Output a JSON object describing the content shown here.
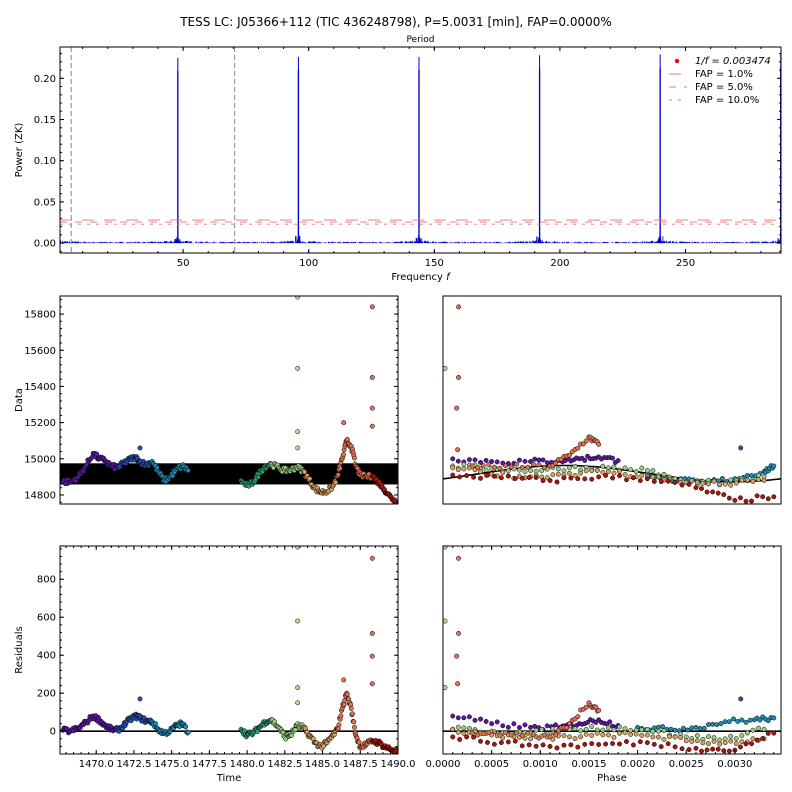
{
  "figure_title": "TESS LC: J05366+112 (TIC 436248798), P=5.0031 [min], FAP=0.0000%",
  "chart_data": [
    {
      "id": "periodogram",
      "type": "line",
      "title": "",
      "top_axis_label": "Period",
      "xlabel": "Frequency $f$",
      "ylabel": "Power (ZK)",
      "xlim": [
        1,
        288
      ],
      "ylim": [
        -0.012,
        0.238
      ],
      "xticks": [
        50,
        100,
        150,
        200,
        250
      ],
      "xtick_labels": [
        "50",
        "100",
        "150",
        "200",
        "250"
      ],
      "yticks": [
        0.0,
        0.05,
        0.1,
        0.15,
        0.2
      ],
      "ytick_labels": [
        "0.00",
        "0.05",
        "0.10",
        "0.15",
        "0.20"
      ],
      "peaks": [
        {
          "f": 47.9,
          "power": 0.225
        },
        {
          "f": 95.9,
          "power": 0.226
        },
        {
          "f": 143.9,
          "power": 0.226
        },
        {
          "f": 191.9,
          "power": 0.228
        },
        {
          "f": 239.9,
          "power": 0.229
        },
        {
          "f": 287.9,
          "power": 0.23
        }
      ],
      "baseline_noise": 0.004,
      "fap_levels": [
        {
          "name": "FAP = 1.0%",
          "power": 0.028,
          "dash": "long"
        },
        {
          "name": "FAP = 5.0%",
          "power": 0.0255,
          "dash": "medium"
        },
        {
          "name": "FAP = 10.0%",
          "power": 0.023,
          "dash": "short"
        }
      ],
      "vlines": [
        5.5,
        70.5
      ],
      "marker_legend": "$1/f = 0.003474$",
      "legend_position": "top-right",
      "colors": {
        "series": "#0000cc",
        "fap": "#e87070",
        "marker": "#ff0000",
        "vline": "#999999"
      }
    },
    {
      "id": "data-vs-time",
      "type": "scatter",
      "xlabel": "",
      "ylabel": "Data",
      "xlim": [
        1467.6,
        1490.0
      ],
      "ylim": [
        14750,
        15900
      ],
      "yticks": [
        14800,
        15000,
        15200,
        15400,
        15600,
        15800
      ],
      "ytick_labels": [
        "14800",
        "15000",
        "15200",
        "15400",
        "15600",
        "15800"
      ],
      "band": [
        14858,
        14975
      ],
      "series": [
        {
          "color": "#5a1aa0",
          "x": [
            1467.8,
            1468.3,
            1468.8,
            1469.3,
            1469.8,
            1470.2,
            1470.6,
            1471.0,
            1471.4
          ],
          "y": [
            14875,
            14872,
            14900,
            14960,
            15030,
            15000,
            14990,
            14960,
            14950
          ]
        },
        {
          "color": "#2a4fb0",
          "x": [
            1471.4,
            1471.8,
            1472.2,
            1472.6,
            1472.9,
            1473.3,
            1473.7
          ],
          "y": [
            14950,
            14975,
            14995,
            15008,
            14985,
            14968,
            14985
          ]
        },
        {
          "color": "#1f8bb0",
          "x": [
            1473.7,
            1474.1,
            1474.5,
            1474.9,
            1475.3,
            1475.7,
            1476.1
          ],
          "y": [
            14985,
            14930,
            14880,
            14900,
            14940,
            14960,
            14935
          ]
        },
        {
          "color": "#2aa070",
          "x": [
            1479.6,
            1480.0,
            1480.4,
            1480.8,
            1481.2,
            1481.6
          ],
          "y": [
            14880,
            14852,
            14870,
            14920,
            14960,
            14970
          ]
        },
        {
          "color": "#9acd80",
          "x": [
            1481.6,
            1482.1,
            1482.5,
            1482.9,
            1483.3,
            1483.7
          ],
          "y": [
            14970,
            14950,
            14935,
            14940,
            14955,
            14935
          ]
        },
        {
          "color": "#d9a060",
          "x": [
            1483.7,
            1484.1,
            1484.5,
            1484.9,
            1485.3,
            1485.7,
            1486.0
          ],
          "y": [
            14935,
            14885,
            14835,
            14815,
            14820,
            14850,
            14905
          ]
        },
        {
          "color": "#e07050",
          "x": [
            1486.0,
            1486.3,
            1486.6,
            1486.9,
            1487.2,
            1487.5,
            1487.9,
            1488.3
          ],
          "y": [
            14905,
            15000,
            15100,
            15070,
            14960,
            14910,
            14900,
            14905
          ]
        },
        {
          "color": "#aa1510",
          "x": [
            1488.3,
            1488.7,
            1489.1,
            1489.5,
            1489.9
          ],
          "y": [
            14905,
            14870,
            14830,
            14790,
            14760
          ]
        }
      ],
      "outliers": [
        {
          "x": 1483.35,
          "y": 15900,
          "color": "#e8c090"
        },
        {
          "x": 1483.35,
          "y": 15500,
          "color": "#e8c090"
        },
        {
          "x": 1483.35,
          "y": 15150,
          "color": "#e8c090"
        },
        {
          "x": 1483.35,
          "y": 15060,
          "color": "#e8c090"
        },
        {
          "x": 1488.3,
          "y": 15840,
          "color": "#e07050"
        },
        {
          "x": 1488.3,
          "y": 15450,
          "color": "#e07050"
        },
        {
          "x": 1488.3,
          "y": 15280,
          "color": "#e07050"
        },
        {
          "x": 1488.3,
          "y": 15180,
          "color": "#e07050"
        },
        {
          "x": 1486.4,
          "y": 15200,
          "color": "#e07050"
        },
        {
          "x": 1472.9,
          "y": 15060,
          "color": "#2a4fb0"
        }
      ]
    },
    {
      "id": "data-vs-phase",
      "type": "scatter",
      "xlim": [
        0.0,
        0.003474
      ],
      "ylim": [
        14750,
        15900
      ],
      "model": {
        "mean": 14918,
        "amplitude": 45,
        "phase_peak": 0.00125
      },
      "series": [
        {
          "color": "#5a1aa0",
          "x": [
            0.0001,
            0.0005,
            0.0009,
            0.0012,
            0.0014,
            0.0016,
            0.0018
          ],
          "y": [
            15000,
            14985,
            14985,
            14990,
            15000,
            15010,
            14990
          ]
        },
        {
          "color": "#1f8bb0",
          "x": [
            0.0021,
            0.0024,
            0.0027,
            0.003,
            0.0033,
            0.0034
          ],
          "y": [
            14920,
            14880,
            14870,
            14890,
            14930,
            14960
          ]
        },
        {
          "color": "#9acd80",
          "x": [
            0.0001,
            0.0005,
            0.0009,
            0.0013,
            0.0017,
            0.0021,
            0.0025,
            0.0029,
            0.0033
          ],
          "y": [
            14960,
            14945,
            14935,
            14950,
            14950,
            14935,
            14870,
            14865,
            14900
          ]
        },
        {
          "color": "#d9a060",
          "x": [
            0.0001,
            0.0005,
            0.0009,
            0.0013,
            0.0017,
            0.0021,
            0.0025,
            0.0029,
            0.0033
          ],
          "y": [
            14950,
            14915,
            14900,
            14920,
            14930,
            14900,
            14870,
            14860,
            14880
          ]
        },
        {
          "color": "#e07050",
          "x": [
            0.0003,
            0.0007,
            0.0011,
            0.0013,
            0.0015,
            0.0016
          ],
          "y": [
            14960,
            14955,
            14960,
            15020,
            15120,
            15080
          ]
        },
        {
          "color": "#aa1510",
          "x": [
            0.0001,
            0.0006,
            0.0011,
            0.0016,
            0.0021,
            0.0026,
            0.003,
            0.0034
          ],
          "y": [
            14910,
            14895,
            14880,
            14900,
            14890,
            14840,
            14770,
            14790
          ]
        }
      ],
      "outliers": [
        {
          "x": 2e-05,
          "y": 15500,
          "color": "#e8c090"
        },
        {
          "x": 0.00016,
          "y": 15840,
          "color": "#e07050"
        },
        {
          "x": 0.00016,
          "y": 15450,
          "color": "#e07050"
        },
        {
          "x": 0.00014,
          "y": 15280,
          "color": "#e07050"
        },
        {
          "x": 0.00015,
          "y": 15050,
          "color": "#e07050"
        },
        {
          "x": 0.00306,
          "y": 15060,
          "color": "#2a4fb0"
        }
      ]
    },
    {
      "id": "residuals-vs-time",
      "type": "scatter",
      "xlabel": "Time",
      "ylabel": "Residuals",
      "xlim": [
        1467.6,
        1490.0
      ],
      "ylim": [
        -120,
        975
      ],
      "xticks": [
        1470.0,
        1472.5,
        1475.0,
        1477.5,
        1480.0,
        1482.5,
        1485.0,
        1487.5,
        1490.0
      ],
      "xtick_labels": [
        "1470.0",
        "1472.5",
        "1475.0",
        "1477.5",
        "1480.0",
        "1482.5",
        "1485.0",
        "1487.5",
        "1490.0"
      ],
      "yticks": [
        0,
        200,
        400,
        600,
        800
      ],
      "ytick_labels": [
        "0",
        "200",
        "400",
        "600",
        "800"
      ],
      "zero_line": 0,
      "series": [
        {
          "color": "#5a1aa0",
          "x": [
            1467.8,
            1468.3,
            1468.8,
            1469.3,
            1469.8,
            1470.2,
            1470.6,
            1471.0,
            1471.4
          ],
          "y": [
            5,
            0,
            15,
            45,
            80,
            60,
            30,
            10,
            5
          ]
        },
        {
          "color": "#2a4fb0",
          "x": [
            1471.4,
            1471.8,
            1472.2,
            1472.6,
            1472.9,
            1473.3,
            1473.7
          ],
          "y": [
            5,
            30,
            60,
            80,
            70,
            55,
            50
          ]
        },
        {
          "color": "#1f8bb0",
          "x": [
            1473.7,
            1474.1,
            1474.5,
            1474.9,
            1475.3,
            1475.7,
            1476.1
          ],
          "y": [
            50,
            10,
            -10,
            0,
            30,
            40,
            -5
          ]
        },
        {
          "color": "#2aa070",
          "x": [
            1479.6,
            1480.0,
            1480.4,
            1480.8,
            1481.2,
            1481.6
          ],
          "y": [
            10,
            -20,
            -10,
            20,
            50,
            60
          ]
        },
        {
          "color": "#9acd80",
          "x": [
            1481.6,
            1482.1,
            1482.5,
            1482.9,
            1483.3,
            1483.7
          ],
          "y": [
            60,
            20,
            -30,
            -20,
            30,
            20
          ]
        },
        {
          "color": "#d9a060",
          "x": [
            1483.7,
            1484.1,
            1484.5,
            1484.9,
            1485.3,
            1485.7,
            1486.0
          ],
          "y": [
            20,
            -20,
            -60,
            -80,
            -60,
            -20,
            10
          ]
        },
        {
          "color": "#e07050",
          "x": [
            1486.0,
            1486.3,
            1486.6,
            1486.9,
            1487.2,
            1487.5,
            1487.9,
            1488.3
          ],
          "y": [
            10,
            120,
            200,
            120,
            -20,
            -80,
            -70,
            -50
          ]
        },
        {
          "color": "#aa1510",
          "x": [
            1488.3,
            1488.7,
            1489.1,
            1489.5,
            1489.9
          ],
          "y": [
            -50,
            -60,
            -80,
            -95,
            -105
          ]
        }
      ],
      "outliers": [
        {
          "x": 1483.35,
          "y": 970,
          "color": "#e8c090"
        },
        {
          "x": 1483.35,
          "y": 580,
          "color": "#e8c090"
        },
        {
          "x": 1483.35,
          "y": 230,
          "color": "#e8c090"
        },
        {
          "x": 1483.35,
          "y": 150,
          "color": "#e8c090"
        },
        {
          "x": 1488.3,
          "y": 910,
          "color": "#e07050"
        },
        {
          "x": 1488.3,
          "y": 515,
          "color": "#e07050"
        },
        {
          "x": 1488.3,
          "y": 395,
          "color": "#e07050"
        },
        {
          "x": 1488.3,
          "y": 250,
          "color": "#e07050"
        },
        {
          "x": 1486.4,
          "y": 270,
          "color": "#e07050"
        },
        {
          "x": 1472.9,
          "y": 170,
          "color": "#2a4fb0"
        }
      ]
    },
    {
      "id": "residuals-vs-phase",
      "type": "scatter",
      "xlabel": "Phase",
      "xlim": [
        0.0,
        0.003474
      ],
      "ylim": [
        -120,
        975
      ],
      "xticks": [
        0.0,
        0.0005,
        0.001,
        0.0015,
        0.002,
        0.0025,
        0.003
      ],
      "xtick_labels": [
        "0.0000",
        "0.0005",
        "0.0010",
        "0.0015",
        "0.0020",
        "0.0025",
        "0.0030"
      ],
      "zero_line": 0,
      "series": [
        {
          "color": "#5a1aa0",
          "x": [
            0.0001,
            0.0005,
            0.0009,
            0.0012,
            0.0014,
            0.0016,
            0.0018
          ],
          "y": [
            80,
            40,
            20,
            20,
            40,
            60,
            30
          ]
        },
        {
          "color": "#1f8bb0",
          "x": [
            0.002,
            0.0023,
            0.0026,
            0.0029,
            0.0032,
            0.0034
          ],
          "y": [
            20,
            10,
            20,
            50,
            60,
            70
          ]
        },
        {
          "color": "#9acd80",
          "x": [
            0.0001,
            0.0005,
            0.0009,
            0.0013,
            0.0017,
            0.0021,
            0.0025,
            0.0029,
            0.0033
          ],
          "y": [
            10,
            0,
            -10,
            10,
            20,
            10,
            -30,
            -40,
            10
          ]
        },
        {
          "color": "#d9a060",
          "x": [
            0.0001,
            0.0005,
            0.0009,
            0.0013,
            0.0017,
            0.0021,
            0.0025,
            0.0029,
            0.0033
          ],
          "y": [
            10,
            -20,
            -40,
            -30,
            -20,
            -20,
            -50,
            -60,
            -40
          ]
        },
        {
          "color": "#e07050",
          "x": [
            0.0003,
            0.0007,
            0.0011,
            0.0013,
            0.0015,
            0.0016
          ],
          "y": [
            -10,
            -20,
            -30,
            40,
            150,
            110
          ]
        },
        {
          "color": "#aa1510",
          "x": [
            0.0001,
            0.0006,
            0.0011,
            0.0016,
            0.0021,
            0.0026,
            0.003,
            0.0034
          ],
          "y": [
            -30,
            -60,
            -80,
            -70,
            -60,
            -90,
            -100,
            -10
          ]
        }
      ],
      "outliers": [
        {
          "x": 2e-05,
          "y": 970,
          "color": "#e8c090"
        },
        {
          "x": 2e-05,
          "y": 580,
          "color": "#e8c090"
        },
        {
          "x": 2e-05,
          "y": 230,
          "color": "#e8c090"
        },
        {
          "x": 0.00016,
          "y": 910,
          "color": "#e07050"
        },
        {
          "x": 0.00016,
          "y": 515,
          "color": "#e07050"
        },
        {
          "x": 0.00014,
          "y": 395,
          "color": "#e07050"
        },
        {
          "x": 0.00015,
          "y": 250,
          "color": "#e07050"
        },
        {
          "x": 0.00306,
          "y": 170,
          "color": "#2a4fb0"
        }
      ]
    }
  ]
}
